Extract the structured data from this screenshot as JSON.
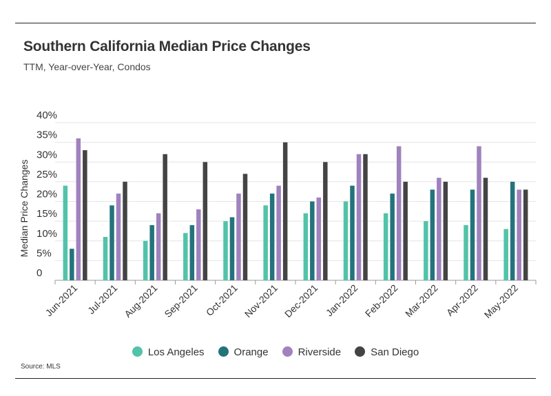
{
  "title": "Southern California Median Price Changes",
  "subtitle": "TTM, Year-over-Year, Condos",
  "source": "Source:  MLS",
  "chart_data": {
    "type": "bar",
    "title": "Southern California Median Price Changes",
    "subtitle": "TTM, Year-over-Year, Condos",
    "xlabel": "",
    "ylabel": "Median Price Changes",
    "ylim": [
      0,
      40
    ],
    "yticks": [
      0,
      5,
      10,
      15,
      20,
      25,
      30,
      35,
      40
    ],
    "ytick_labels": [
      "0",
      "5%",
      "10%",
      "15%",
      "20%",
      "25%",
      "30%",
      "35%",
      "40%"
    ],
    "grid": true,
    "legend_position": "bottom",
    "categories": [
      "Jun-2021",
      "Jul-2021",
      "Aug-2021",
      "Sep-2021",
      "Oct-2021",
      "Nov-2021",
      "Dec-2021",
      "Jan-2022",
      "Feb-2022",
      "Mar-2022",
      "Apr-2022",
      "May-2022"
    ],
    "series": [
      {
        "name": "Los Angeles",
        "color": "#52c3a8",
        "values": [
          24,
          11,
          10,
          12,
          15,
          19,
          17,
          20,
          17,
          15,
          14,
          13
        ]
      },
      {
        "name": "Orange",
        "color": "#24737c",
        "values": [
          8,
          19,
          14,
          14,
          16,
          22,
          20,
          24,
          22,
          23,
          23,
          25
        ]
      },
      {
        "name": "Riverside",
        "color": "#a082be",
        "values": [
          36,
          22,
          17,
          18,
          22,
          24,
          21,
          32,
          34,
          26,
          34,
          23
        ]
      },
      {
        "name": "San Diego",
        "color": "#444444",
        "values": [
          33,
          25,
          32,
          30,
          27,
          35,
          30,
          32,
          25,
          25,
          26,
          23
        ]
      }
    ]
  }
}
